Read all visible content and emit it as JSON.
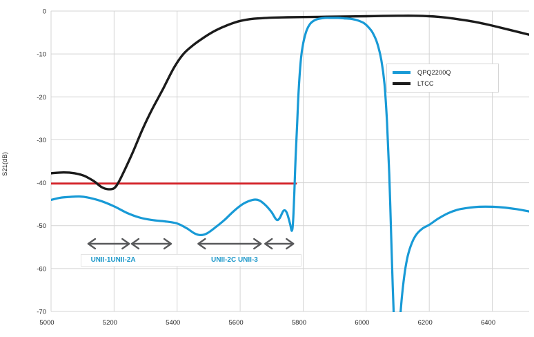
{
  "chart_data": {
    "type": "line",
    "title": "",
    "xlabel": "",
    "ylabel": "S21(dB)",
    "xlim": [
      5000,
      6517
    ],
    "ylim": [
      -70,
      0
    ],
    "x_ticks": [
      5000,
      5200,
      5400,
      5600,
      5800,
      6000,
      6200,
      6400
    ],
    "y_ticks": [
      0,
      -10,
      -20,
      -30,
      -40,
      -50,
      -60,
      -70
    ],
    "grid": true,
    "grid_color": "#d4d4d4",
    "tick_color": "#262626",
    "legend_position": "right-top-inside",
    "series": [
      {
        "name": "QPQ2200Q",
        "color": "#189ad6",
        "width": 3.2,
        "in_legend": true,
        "points": [
          [
            5000,
            -44.0
          ],
          [
            5030,
            -43.5
          ],
          [
            5060,
            -43.3
          ],
          [
            5090,
            -43.2
          ],
          [
            5120,
            -43.5
          ],
          [
            5160,
            -44.3
          ],
          [
            5200,
            -45.5
          ],
          [
            5240,
            -47.0
          ],
          [
            5280,
            -48.1
          ],
          [
            5320,
            -48.7
          ],
          [
            5360,
            -49.0
          ],
          [
            5400,
            -49.5
          ],
          [
            5430,
            -50.6
          ],
          [
            5455,
            -51.8
          ],
          [
            5475,
            -52.2
          ],
          [
            5495,
            -51.8
          ],
          [
            5520,
            -50.5
          ],
          [
            5550,
            -48.7
          ],
          [
            5580,
            -46.6
          ],
          [
            5610,
            -44.9
          ],
          [
            5640,
            -44.0
          ],
          [
            5660,
            -44.1
          ],
          [
            5680,
            -45.2
          ],
          [
            5700,
            -46.9
          ],
          [
            5715,
            -48.6
          ],
          [
            5725,
            -48.3
          ],
          [
            5738,
            -46.5
          ],
          [
            5748,
            -47.0
          ],
          [
            5758,
            -49.5
          ],
          [
            5764,
            -51.2
          ],
          [
            5768,
            -49.0
          ],
          [
            5772,
            -42.0
          ],
          [
            5776,
            -34.0
          ],
          [
            5781,
            -26.0
          ],
          [
            5786,
            -18.0
          ],
          [
            5793,
            -11.0
          ],
          [
            5800,
            -7.5
          ],
          [
            5810,
            -4.7
          ],
          [
            5822,
            -3.0
          ],
          [
            5835,
            -2.2
          ],
          [
            5850,
            -1.8
          ],
          [
            5870,
            -1.6
          ],
          [
            5890,
            -1.6
          ],
          [
            5910,
            -1.6
          ],
          [
            5930,
            -1.7
          ],
          [
            5950,
            -1.8
          ],
          [
            5970,
            -2.1
          ],
          [
            5990,
            -2.7
          ],
          [
            6005,
            -3.6
          ],
          [
            6020,
            -5.0
          ],
          [
            6035,
            -7.5
          ],
          [
            6048,
            -11.5
          ],
          [
            6058,
            -17.0
          ],
          [
            6066,
            -26.0
          ],
          [
            6073,
            -38.0
          ],
          [
            6079,
            -52.0
          ],
          [
            6084,
            -64.0
          ],
          [
            6088,
            -72.0
          ],
          [
            6092,
            -76.0
          ],
          [
            6102,
            -76.0
          ],
          [
            6108,
            -71.0
          ],
          [
            6114,
            -66.0
          ],
          [
            6122,
            -61.0
          ],
          [
            6132,
            -57.0
          ],
          [
            6145,
            -54.0
          ],
          [
            6160,
            -52.0
          ],
          [
            6180,
            -50.6
          ],
          [
            6200,
            -49.8
          ],
          [
            6230,
            -48.3
          ],
          [
            6260,
            -47.1
          ],
          [
            6290,
            -46.3
          ],
          [
            6320,
            -45.9
          ],
          [
            6360,
            -45.6
          ],
          [
            6400,
            -45.6
          ],
          [
            6440,
            -45.8
          ],
          [
            6480,
            -46.2
          ],
          [
            6517,
            -46.7
          ]
        ]
      },
      {
        "name": "LTCC",
        "color": "#1b1b1b",
        "width": 3.4,
        "in_legend": true,
        "points": [
          [
            5000,
            -37.8
          ],
          [
            5040,
            -37.6
          ],
          [
            5075,
            -37.8
          ],
          [
            5105,
            -38.4
          ],
          [
            5135,
            -39.6
          ],
          [
            5160,
            -41.0
          ],
          [
            5180,
            -41.5
          ],
          [
            5200,
            -41.3
          ],
          [
            5215,
            -39.8
          ],
          [
            5235,
            -36.8
          ],
          [
            5260,
            -32.8
          ],
          [
            5290,
            -27.6
          ],
          [
            5320,
            -23.0
          ],
          [
            5355,
            -18.2
          ],
          [
            5390,
            -13.2
          ],
          [
            5420,
            -10.0
          ],
          [
            5450,
            -8.0
          ],
          [
            5480,
            -6.4
          ],
          [
            5510,
            -5.0
          ],
          [
            5540,
            -3.9
          ],
          [
            5570,
            -3.0
          ],
          [
            5600,
            -2.3
          ],
          [
            5630,
            -1.9
          ],
          [
            5660,
            -1.7
          ],
          [
            5700,
            -1.55
          ],
          [
            5750,
            -1.45
          ],
          [
            5800,
            -1.4
          ],
          [
            5850,
            -1.35
          ],
          [
            5900,
            -1.3
          ],
          [
            5950,
            -1.25
          ],
          [
            6000,
            -1.2
          ],
          [
            6050,
            -1.15
          ],
          [
            6100,
            -1.1
          ],
          [
            6150,
            -1.1
          ],
          [
            6200,
            -1.2
          ],
          [
            6250,
            -1.5
          ],
          [
            6300,
            -2.0
          ],
          [
            6350,
            -2.6
          ],
          [
            6400,
            -3.4
          ],
          [
            6450,
            -4.3
          ],
          [
            6517,
            -5.5
          ]
        ]
      },
      {
        "name": "rejection-limit",
        "color": "#d6252b",
        "width": 2.8,
        "in_legend": false,
        "points": [
          [
            5000,
            -40.2
          ],
          [
            5777,
            -40.2
          ]
        ]
      }
    ],
    "annotations": {
      "arrows": [
        {
          "name": "unii-1-range",
          "range": [
            5118,
            5248
          ]
        },
        {
          "name": "unii-2a-range",
          "range": [
            5256,
            5381
          ]
        },
        {
          "name": "unii-2c-range",
          "range": [
            5467,
            5666
          ]
        },
        {
          "name": "unii-3-range",
          "range": [
            5679,
            5769
          ]
        }
      ],
      "arrow_color": "#58595b",
      "labels": [
        {
          "text": "UNII-1UNII-2A",
          "center_freq": 5195,
          "color": "#1b97c9"
        },
        {
          "text": "UNII-2C UNII-3",
          "center_freq": 5580,
          "color": "#1b97c9"
        }
      ]
    }
  }
}
